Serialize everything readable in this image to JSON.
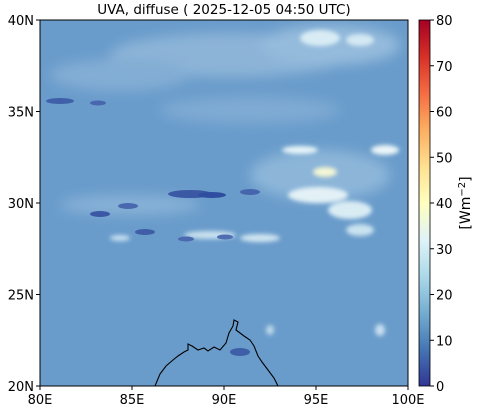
{
  "title": "UVA, diffuse ( 2025-12-05 04:50 UTC)",
  "colorbar": {
    "label": "[Wm−2]",
    "ticks": [
      "0",
      "10",
      "20",
      "30",
      "40",
      "50",
      "60",
      "70",
      "80"
    ],
    "range": [
      0,
      80
    ],
    "colormap": "RdYlBu_r",
    "colors": [
      "#313695",
      "#4575b4",
      "#74add1",
      "#abd9e9",
      "#e0f3f8",
      "#ffffbf",
      "#fee090",
      "#fdae61",
      "#f46d43",
      "#d73027",
      "#a50026"
    ]
  },
  "axes": {
    "x_ticks": [
      "80E",
      "85E",
      "90E",
      "95E",
      "100E"
    ],
    "y_ticks": [
      "20N",
      "25N",
      "30N",
      "35N",
      "40N"
    ],
    "lon_range": [
      80,
      100
    ],
    "lat_range": [
      20,
      40
    ]
  },
  "map": {
    "background_value": 15,
    "background_color": "#6a9ccb",
    "features": [
      "coastline Bay of Bengal",
      "Himalaya low-value band",
      "Tibetan plateau high-value patches",
      "clouds northern Tibet"
    ]
  }
}
